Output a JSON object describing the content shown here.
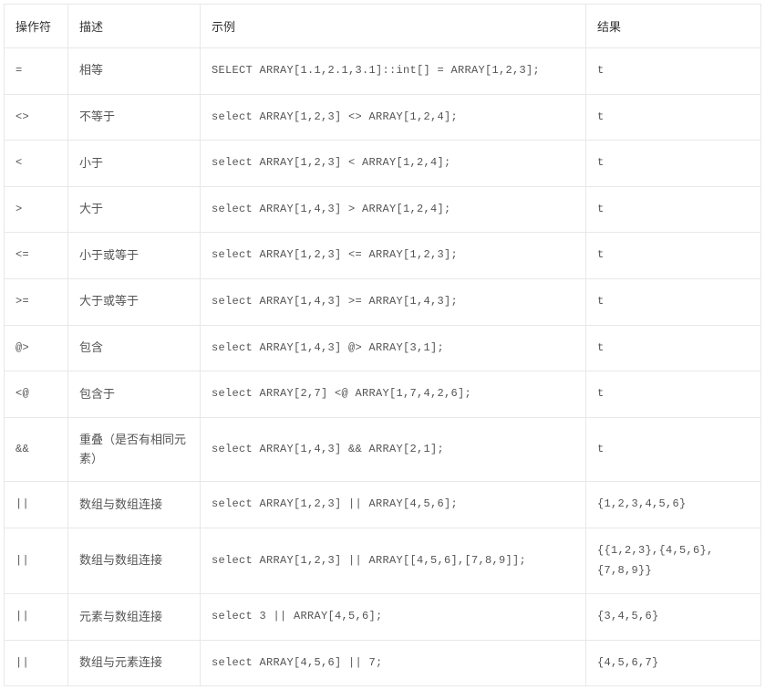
{
  "table": {
    "columns": [
      "操作符",
      "描述",
      "示例",
      "结果"
    ],
    "rows": [
      {
        "operator": "=",
        "description": "相等",
        "example": " SELECT ARRAY[1.1,2.1,3.1]::int[] = ARRAY[1,2,3];",
        "result": "t"
      },
      {
        "operator": "<>",
        "description": "不等于",
        "example": " select ARRAY[1,2,3] <> ARRAY[1,2,4];",
        "result": "t"
      },
      {
        "operator": "<",
        "description": "小于",
        "example": " select ARRAY[1,2,3] < ARRAY[1,2,4];",
        "result": "t"
      },
      {
        "operator": ">",
        "description": "大于",
        "example": " select ARRAY[1,4,3] > ARRAY[1,2,4];",
        "result": "t"
      },
      {
        "operator": "<=",
        "description": "小于或等于",
        "example": " select ARRAY[1,2,3] <= ARRAY[1,2,3];",
        "result": "t"
      },
      {
        "operator": ">=",
        "description": "大于或等于",
        "example": " select ARRAY[1,4,3] >= ARRAY[1,4,3];",
        "result": "t"
      },
      {
        "operator": "@>",
        "description": "包含",
        "example": " select ARRAY[1,4,3] @> ARRAY[3,1];",
        "result": "t"
      },
      {
        "operator": "<@",
        "description": "包含于",
        "example": " select ARRAY[2,7] <@ ARRAY[1,7,4,2,6];",
        "result": "t"
      },
      {
        "operator": "&&",
        "description": "重叠（是否有相同元素）",
        "example": " select ARRAY[1,4,3] && ARRAY[2,1];",
        "result": "t"
      },
      {
        "operator": "||",
        "description": "数组与数组连接",
        "example": " select ARRAY[1,2,3] || ARRAY[4,5,6];",
        "result": "{1,2,3,4,5,6}"
      },
      {
        "operator": "||",
        "description": "数组与数组连接",
        "example": " select ARRAY[1,2,3] || ARRAY[[4,5,6],[7,8,9]];",
        "result": "{{1,2,3},{4,5,6},{7,8,9}}"
      },
      {
        "operator": "||",
        "description": "元素与数组连接",
        "example": " select 3 || ARRAY[4,5,6];",
        "result": "{3,4,5,6}"
      },
      {
        "operator": "||",
        "description": "数组与元素连接",
        "example": " select ARRAY[4,5,6] || 7;",
        "result": "{4,5,6,7}"
      }
    ],
    "styling": {
      "border_color": "#e8e8e8",
      "header_text_color": "#333333",
      "cell_text_color": "#555555",
      "background_color": "#ffffff",
      "font_size_body": 13,
      "font_size_mono": 12,
      "mono_font": "Courier New",
      "cell_padding": "14px 12px",
      "col_widths": {
        "operator": 70,
        "description": 145,
        "result": 192
      }
    }
  }
}
